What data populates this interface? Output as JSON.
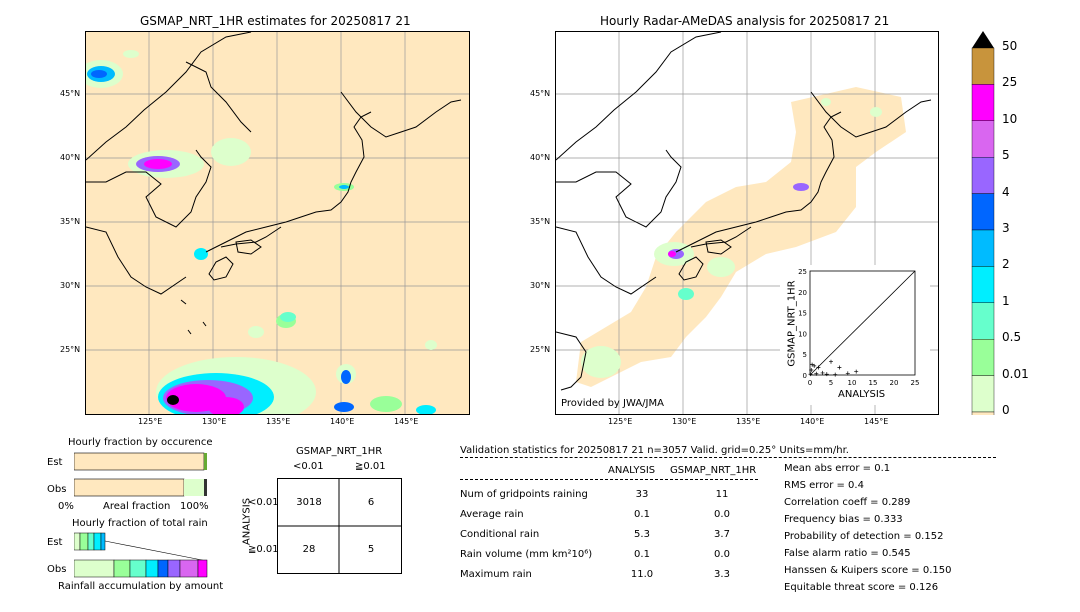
{
  "left_map": {
    "title": "GSMAP_NRT_1HR estimates for 20250817 21",
    "lat_labels": [
      "45°N",
      "40°N",
      "35°N",
      "30°N",
      "25°N"
    ],
    "lon_labels": [
      "125°E",
      "130°E",
      "135°E",
      "140°E",
      "145°E"
    ]
  },
  "right_map": {
    "title": "Hourly Radar-AMeDAS analysis for 20250817 21",
    "lat_labels": [
      "45°N",
      "40°N",
      "35°N",
      "30°N",
      "25°N"
    ],
    "lon_labels": [
      "125°E",
      "130°E",
      "135°E",
      "140°E",
      "145°E"
    ],
    "provider": "Provided by JWA/JMA"
  },
  "colorbar": {
    "labels": [
      "50",
      "25",
      "10",
      "5",
      "4",
      "3",
      "2",
      "1",
      "0.5",
      "0.01",
      "0"
    ],
    "colors": [
      "#c8943c",
      "#ff00ff",
      "#d966f0",
      "#9966ff",
      "#0066ff",
      "#00bbff",
      "#00eeff",
      "#66ffcc",
      "#99ff99",
      "#ddffcc",
      "#ffe8bf"
    ]
  },
  "chart_data": [
    {
      "type": "scatter",
      "title": "",
      "xlabel": "ANALYSIS",
      "ylabel": "GSMAP_NRT_1HR",
      "xlim": [
        0,
        25
      ],
      "ylim": [
        0,
        25
      ],
      "ticks": [
        "0",
        "5",
        "10",
        "15",
        "20",
        "25"
      ],
      "points": [
        [
          0.1,
          0.2
        ],
        [
          0.3,
          1.2
        ],
        [
          0.5,
          2.5
        ],
        [
          1.0,
          2.2
        ],
        [
          1.5,
          0.3
        ],
        [
          2.0,
          1.8
        ],
        [
          3.0,
          0.5
        ],
        [
          4.0,
          0.2
        ],
        [
          5.0,
          3.2
        ],
        [
          6.0,
          0.1
        ],
        [
          7.0,
          1.8
        ],
        [
          9.0,
          0.4
        ],
        [
          11.0,
          0.8
        ]
      ],
      "diagonal": true
    },
    {
      "type": "bar",
      "title": "Hourly fraction by occurence",
      "categories": [
        "Est",
        "Obs"
      ],
      "axis_left": "0%",
      "axis_right": "100%",
      "axis_label": "Areal fraction"
    },
    {
      "type": "bar",
      "title": "Hourly fraction of total rain",
      "categories": [
        "Est",
        "Obs"
      ],
      "axis_label": "Rainfall accumulation by amount"
    }
  ],
  "contingency": {
    "header": "GSMAP_NRT_1HR",
    "col_labels": [
      "<0.01",
      "≧0.01"
    ],
    "row_axis": "ANALYSIS",
    "row_labels": [
      "<0.01",
      "≧0.01"
    ],
    "cells": [
      [
        "3018",
        "6"
      ],
      [
        "28",
        "5"
      ]
    ]
  },
  "validation": {
    "header": "Validation statistics for 20250817 21  n=3057 Valid. grid=0.25° Units=mm/hr.",
    "col_analysis": "ANALYSIS",
    "col_gsmap": "GSMAP_NRT_1HR",
    "rows": [
      {
        "label": "Num of gridpoints raining",
        "a": "33",
        "g": "11"
      },
      {
        "label": "Average rain",
        "a": "0.1",
        "g": "0.0"
      },
      {
        "label": "Conditional rain",
        "a": "5.3",
        "g": "3.7"
      },
      {
        "label": "Rain volume (mm km²10⁶)",
        "a": "0.1",
        "g": "0.0"
      },
      {
        "label": "Maximum rain",
        "a": "11.0",
        "g": "3.3"
      }
    ],
    "scores": [
      "Mean abs error =    0.1",
      "RMS error =    0.4",
      "Correlation coeff =  0.289",
      "Frequency bias =  0.333",
      "Probability of detection =  0.152",
      "False alarm ratio =  0.545",
      "Hanssen & Kuipers score =  0.150",
      "Equitable threat score =  0.126"
    ]
  }
}
